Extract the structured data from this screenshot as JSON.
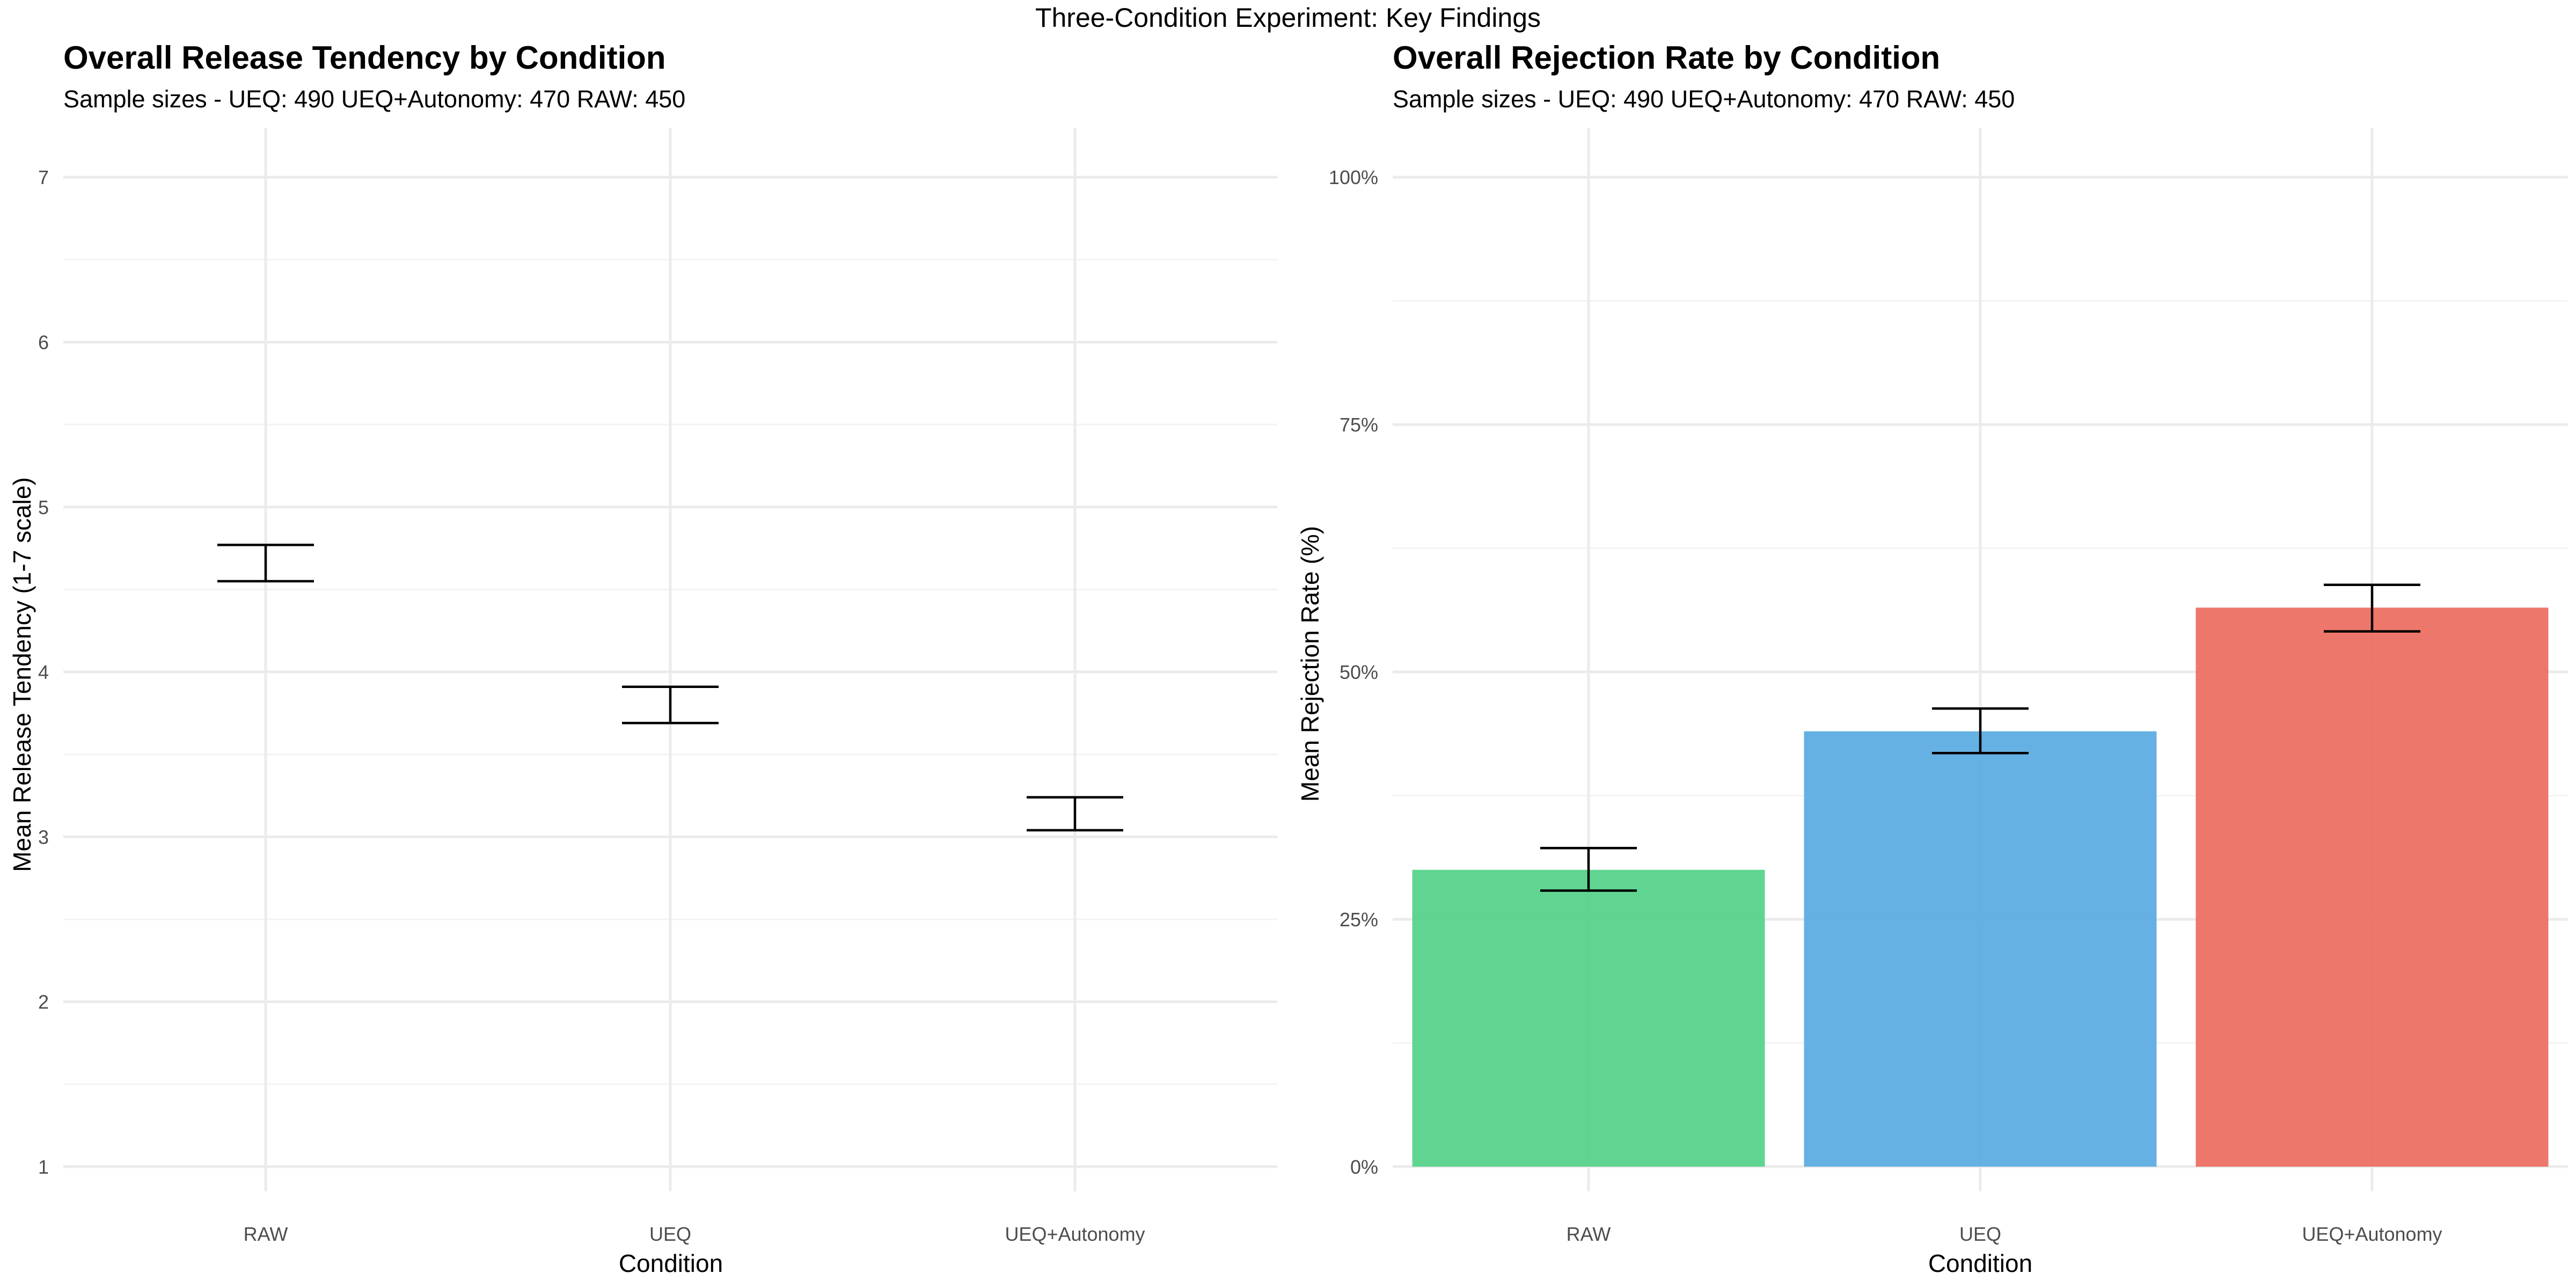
{
  "figure": {
    "suptitle": "Three-Condition Experiment: Key Findings"
  },
  "chart_data": [
    {
      "type": "scatter",
      "title": "Overall Release Tendency by Condition",
      "subtitle": "Sample sizes - UEQ: 490 UEQ+Autonomy: 470 RAW: 450",
      "xlabel": "Condition",
      "ylabel": "Mean Release Tendency (1-7 scale)",
      "categories": [
        "RAW",
        "UEQ",
        "UEQ+Autonomy"
      ],
      "mean": [
        4.66,
        3.8,
        3.14
      ],
      "ci_lower": [
        4.55,
        3.69,
        3.04
      ],
      "ci_upper": [
        4.77,
        3.91,
        3.24
      ],
      "ylim": [
        0.85,
        7.3
      ],
      "yticks": [
        1,
        2,
        3,
        4,
        5,
        6,
        7
      ],
      "ytick_labels": [
        "1",
        "2",
        "3",
        "4",
        "5",
        "6",
        "7"
      ],
      "grid": true,
      "marker": "errorbar-only"
    },
    {
      "type": "bar",
      "title": "Overall Rejection Rate by Condition",
      "subtitle": "Sample sizes - UEQ: 490 UEQ+Autonomy: 470 RAW: 450",
      "xlabel": "Condition",
      "ylabel": "Mean Rejection Rate (%)",
      "categories": [
        "RAW",
        "UEQ",
        "UEQ+Autonomy"
      ],
      "values": [
        0.3,
        0.44,
        0.565
      ],
      "ci_lower": [
        0.279,
        0.418,
        0.541
      ],
      "ci_upper": [
        0.322,
        0.463,
        0.588
      ],
      "colors": [
        "#57d38b",
        "#5dade2",
        "#ec7063"
      ],
      "ylim": [
        -0.025,
        1.05
      ],
      "yticks": [
        0,
        0.25,
        0.5,
        0.75,
        1.0
      ],
      "ytick_labels": [
        "0%",
        "25%",
        "50%",
        "75%",
        "100%"
      ],
      "grid": true
    }
  ]
}
